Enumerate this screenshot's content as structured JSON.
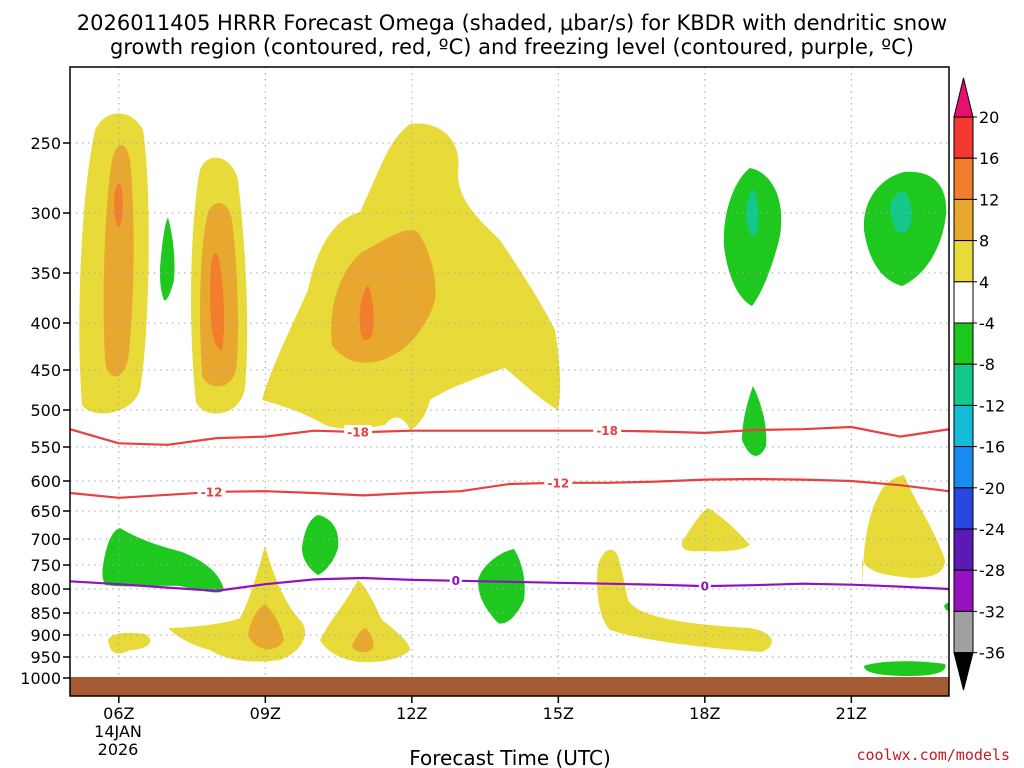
{
  "chart_data": {
    "type": "contour",
    "title_lines": [
      "2026011405 HRRR Forecast Omega (shaded, μbar/s) for KBDR with dendritic snow",
      "growth region (contoured, red, ºC) and freezing level (contoured, purple, ºC)"
    ],
    "xlabel": "Forecast Time (UTC)",
    "x_ticks": [
      "06Z",
      "09Z",
      "12Z",
      "15Z",
      "18Z",
      "21Z"
    ],
    "x_tick_hours": [
      6,
      9,
      12,
      15,
      18,
      21
    ],
    "x_date_lines": [
      "14JAN",
      "2026"
    ],
    "xlim_hours": [
      5,
      23
    ],
    "y_ticks": [
      250,
      300,
      350,
      400,
      450,
      500,
      550,
      600,
      650,
      700,
      750,
      800,
      850,
      900,
      950,
      1000
    ],
    "ylim_hPa": [
      200,
      1025
    ],
    "colorbar": {
      "levels": [
        20,
        16,
        12,
        8,
        4,
        -4,
        -8,
        -12,
        -16,
        -20,
        -24,
        -28,
        -32,
        -36
      ],
      "colors": [
        "#e8106e",
        "#f43a30",
        "#f27d2c",
        "#e8a830",
        "#e8da38",
        "#ffffff",
        "#1ec81e",
        "#14c88c",
        "#14bcd8",
        "#1a8cf0",
        "#2846e0",
        "#5a1ab4",
        "#9612c0",
        "#a0a0a0",
        "#000000"
      ]
    },
    "omega_regions": [
      {
        "name": "Yellow bands",
        "color": "#e8da38",
        "min_value": 4
      },
      {
        "name": "Orange cores",
        "color": "#e8a830",
        "min_value": 8
      },
      {
        "name": "Dark orange cores",
        "color": "#f27d2c",
        "min_value": 12
      },
      {
        "name": "Green areas",
        "color": "#1ec81e",
        "max_value": -4
      },
      {
        "name": "Teal cores",
        "color": "#14c88c",
        "max_value": -8
      }
    ],
    "contours": [
      {
        "name": "-18",
        "color": "#e84040",
        "points": [
          [
            5.0,
            526
          ],
          [
            6.0,
            545
          ],
          [
            7.0,
            547
          ],
          [
            8.0,
            538
          ],
          [
            9.0,
            536
          ],
          [
            10.0,
            528
          ],
          [
            11.0,
            530
          ],
          [
            12.0,
            528
          ],
          [
            13.0,
            528
          ],
          [
            14.0,
            528
          ],
          [
            15.0,
            528
          ],
          [
            16.0,
            528
          ],
          [
            17.0,
            529
          ],
          [
            18.0,
            531
          ],
          [
            19.0,
            527
          ],
          [
            20.0,
            526
          ],
          [
            21.0,
            523
          ],
          [
            22.0,
            536
          ],
          [
            23.0,
            526
          ]
        ],
        "label_hours": [
          10.9,
          16.0
        ]
      },
      {
        "name": "-12",
        "color": "#e84040",
        "points": [
          [
            5.0,
            620
          ],
          [
            6.0,
            628
          ],
          [
            7.0,
            623
          ],
          [
            8.0,
            618
          ],
          [
            9.0,
            617
          ],
          [
            10.0,
            620
          ],
          [
            11.0,
            624
          ],
          [
            12.0,
            620
          ],
          [
            13.0,
            617
          ],
          [
            14.0,
            605
          ],
          [
            15.0,
            603
          ],
          [
            16.0,
            603
          ],
          [
            17.0,
            601
          ],
          [
            18.0,
            598
          ],
          [
            19.0,
            597
          ],
          [
            20.0,
            598
          ],
          [
            21.0,
            600
          ],
          [
            22.0,
            607
          ],
          [
            23.0,
            617
          ]
        ],
        "label_hours": [
          7.9,
          15.0
        ]
      },
      {
        "name": "0",
        "color": "#8e12c0",
        "points": [
          [
            5.0,
            784
          ],
          [
            6.0,
            790
          ],
          [
            7.0,
            797
          ],
          [
            8.0,
            804
          ],
          [
            9.0,
            790
          ],
          [
            10.0,
            780
          ],
          [
            11.0,
            777
          ],
          [
            12.0,
            781
          ],
          [
            13.0,
            783
          ],
          [
            14.0,
            785
          ],
          [
            15.0,
            787
          ],
          [
            16.0,
            789
          ],
          [
            17.0,
            791
          ],
          [
            18.0,
            794
          ],
          [
            19.0,
            792
          ],
          [
            20.0,
            789
          ],
          [
            21.0,
            791
          ],
          [
            22.0,
            795
          ],
          [
            23.0,
            800
          ]
        ],
        "label_hours": [
          12.9,
          18.0
        ]
      }
    ],
    "credit": "coolwx.com/models"
  }
}
